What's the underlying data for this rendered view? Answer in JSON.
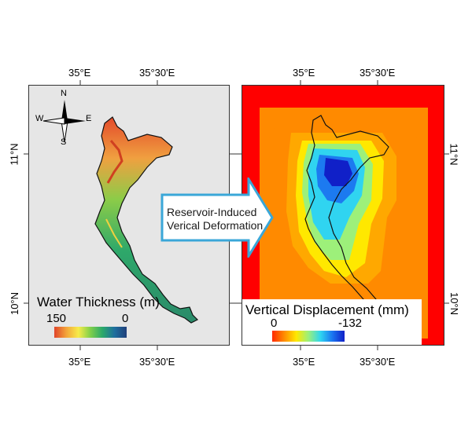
{
  "axes": {
    "top_ticks_left": [
      "35°E",
      "35°30'E"
    ],
    "top_ticks_right": [
      "35°E",
      "35°30'E"
    ],
    "bottom_ticks_left": [
      "35°E",
      "35°30'E"
    ],
    "bottom_ticks_right": [
      "35°E",
      "35°30'E"
    ],
    "left_lat_ticks": [
      "11°N",
      "10°N"
    ],
    "right_lat_ticks": [
      "11°N",
      "10°N"
    ]
  },
  "left_panel": {
    "compass": {
      "n": "N",
      "s": "S",
      "e": "E",
      "w": "W"
    },
    "legend": {
      "title": "Water Thickness (m)",
      "max": "150",
      "min": "0",
      "colors": [
        "#e0442a",
        "#f3a43a",
        "#f7ec4a",
        "#7fcf4a",
        "#2aa86a",
        "#1e6e9e",
        "#203f7a"
      ]
    }
  },
  "arrow": {
    "line1": "Reservoir-Induced",
    "line2": "Verical Deformation",
    "fill": "#ffffff",
    "stroke": "#3aa7d8"
  },
  "right_panel": {
    "legend": {
      "title": "Vertical Displacement (mm)",
      "min": "0",
      "max": "-132",
      "colors": [
        "#ff2a00",
        "#ff8c00",
        "#ffe800",
        "#9bf07a",
        "#2ed6f0",
        "#1a74f0",
        "#1020c8"
      ]
    }
  }
}
